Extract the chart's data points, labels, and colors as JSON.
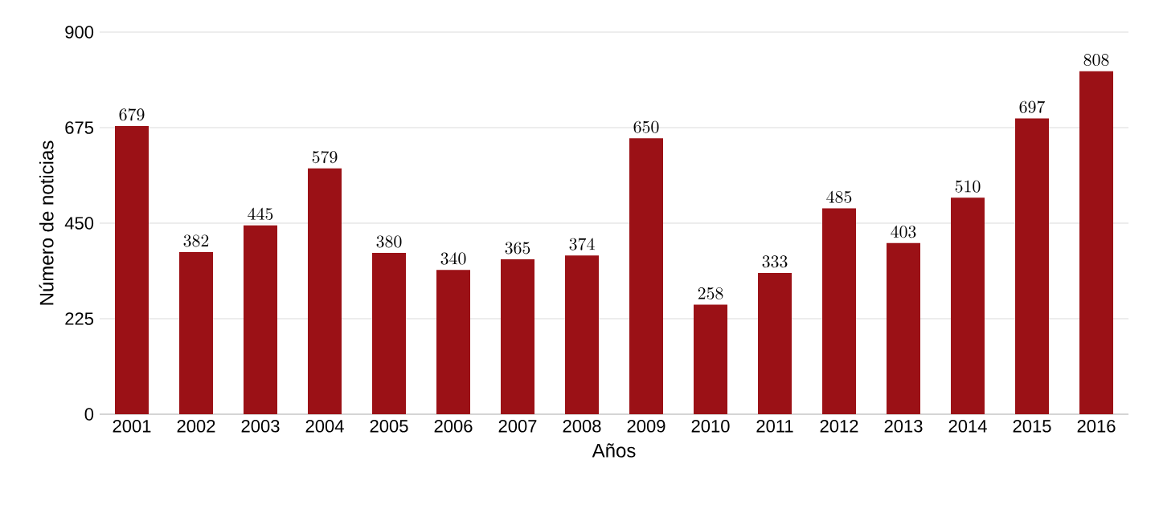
{
  "chart_data": {
    "type": "bar",
    "xlabel": "Años",
    "ylabel": "Número de noticias",
    "categories": [
      "2001",
      "2002",
      "2003",
      "2004",
      "2005",
      "2006",
      "2007",
      "2008",
      "2009",
      "2010",
      "2011",
      "2012",
      "2013",
      "2014",
      "2015",
      "2016"
    ],
    "values": [
      679,
      382,
      445,
      579,
      380,
      340,
      365,
      374,
      650,
      258,
      333,
      485,
      403,
      510,
      697,
      808
    ],
    "color": "#9b1116",
    "ylim": [
      0,
      900
    ],
    "yticks": [
      0,
      225,
      450,
      675,
      900
    ],
    "grid": "y",
    "data_labels": true
  }
}
